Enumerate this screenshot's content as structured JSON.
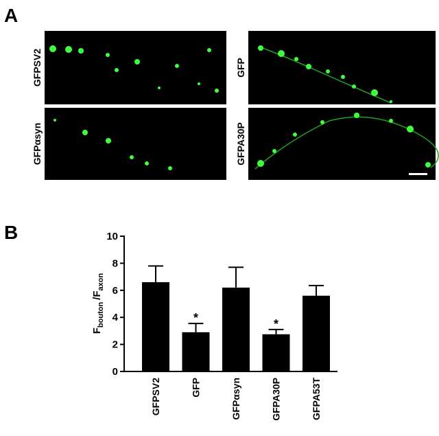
{
  "panel_a": {
    "label": "A",
    "images": [
      {
        "label": "GFPSV2"
      },
      {
        "label": "GFP"
      },
      {
        "label": "GFPαsyn"
      },
      {
        "label": "GFPA30P"
      }
    ]
  },
  "chart_data": {
    "type": "bar",
    "panel_label": "B",
    "ylabel": {
      "numerator": "F",
      "numerator_sub": "bouton",
      "denominator": "/F",
      "denominator_sub": "axon"
    },
    "categories": [
      "GFPSV2",
      "GFP",
      "GFPαsyn",
      "GFPA30P",
      "GFPA53T"
    ],
    "values": [
      6.6,
      2.9,
      6.2,
      2.75,
      5.6
    ],
    "errors": [
      1.2,
      0.65,
      1.5,
      0.35,
      0.75
    ],
    "significance": [
      null,
      "*",
      null,
      "*",
      null
    ],
    "color": "#000000",
    "ylim": [
      0,
      10
    ],
    "yticks": [
      0,
      2,
      4,
      6,
      8,
      10
    ]
  }
}
